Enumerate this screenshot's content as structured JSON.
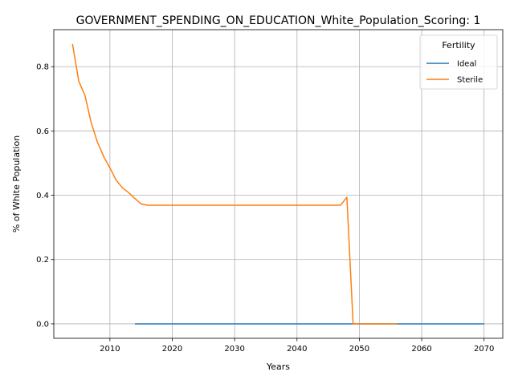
{
  "chart_data": {
    "type": "line",
    "title": "GOVERNMENT_SPENDING_ON_EDUCATION_White_Population_Scoring: 1",
    "xlabel": "Years",
    "ylabel": "% of White Population",
    "xlim": [
      2001,
      2073
    ],
    "ylim": [
      -0.045,
      0.915
    ],
    "xticks": [
      2010,
      2020,
      2030,
      2040,
      2050,
      2060,
      2070
    ],
    "yticks": [
      0.0,
      0.2,
      0.4,
      0.6,
      0.8
    ],
    "xtick_labels": [
      "2010",
      "2020",
      "2030",
      "2040",
      "2050",
      "2060",
      "2070"
    ],
    "ytick_labels": [
      "0.0",
      "0.2",
      "0.4",
      "0.6",
      "0.8"
    ],
    "grid": true,
    "legend": {
      "title": "Fertility",
      "placement": "top-right"
    },
    "series": [
      {
        "name": "Ideal",
        "color": "#1f77b4",
        "x": [
          2014,
          2070
        ],
        "y": [
          0.0,
          0.0
        ]
      },
      {
        "name": "Sterile",
        "color": "#ff7f0e",
        "x": [
          2004,
          2005,
          2006,
          2007,
          2008,
          2009,
          2010,
          2011,
          2012,
          2013,
          2014,
          2015,
          2016,
          2020,
          2030,
          2040,
          2047,
          2048,
          2049,
          2050,
          2056
        ],
        "y": [
          0.87,
          0.755,
          0.71,
          0.625,
          0.565,
          0.52,
          0.485,
          0.447,
          0.423,
          0.408,
          0.39,
          0.373,
          0.369,
          0.369,
          0.369,
          0.369,
          0.369,
          0.394,
          0.0,
          0.0,
          0.0
        ]
      }
    ]
  }
}
